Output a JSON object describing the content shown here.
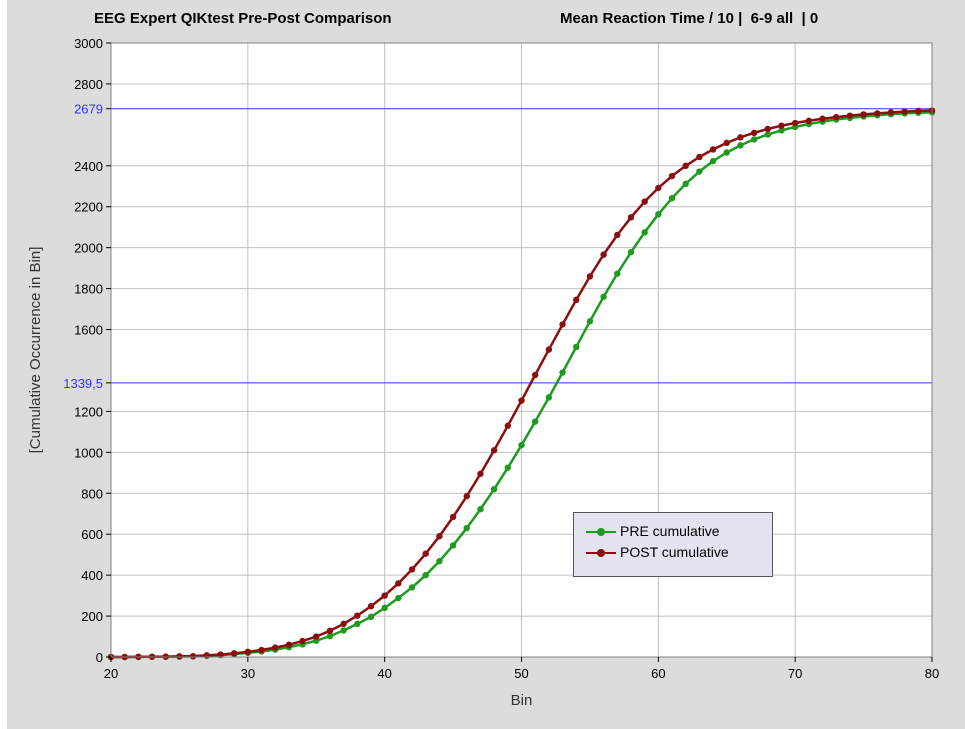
{
  "header": {
    "title_left": "EEG Expert QIKtest Pre-Post Comparison",
    "title_right": "Mean Reaction Time / 10 |  6-9 all  | 0"
  },
  "colors": {
    "background": "#dcdcdc",
    "plot_area": "#ffffff",
    "grid": "#c0c0c0",
    "reference_line": "#3333ff",
    "pre": "#1e9a1e",
    "post": "#8b0f0f"
  },
  "chart_data": {
    "type": "line",
    "xlabel": "Bin",
    "ylabel": "[Cumulative Occurrence in Bin]",
    "xlim": [
      20,
      80
    ],
    "ylim": [
      0,
      3000
    ],
    "x_ticks": [
      "20",
      "30",
      "40",
      "50",
      "60",
      "70",
      "80"
    ],
    "y_ticks": [
      "0",
      "200",
      "400",
      "600",
      "800",
      "1000",
      "1200",
      "1600",
      "1800",
      "2000",
      "2200",
      "2400",
      "2800",
      "3000"
    ],
    "grid": true,
    "legend_position": "lower-right",
    "reference_lines": [
      {
        "value": 2679,
        "label": "2679"
      },
      {
        "value": 1339.5,
        "label": "1339,5"
      }
    ],
    "x": [
      20,
      21,
      22,
      23,
      24,
      25,
      26,
      27,
      28,
      29,
      30,
      31,
      32,
      33,
      34,
      35,
      36,
      37,
      38,
      39,
      40,
      41,
      42,
      43,
      44,
      45,
      46,
      47,
      48,
      49,
      50,
      51,
      52,
      53,
      54,
      55,
      56,
      57,
      58,
      59,
      60,
      61,
      62,
      63,
      64,
      65,
      66,
      67,
      68,
      69,
      70,
      71,
      72,
      73,
      74,
      75,
      76,
      77,
      78,
      79,
      80
    ],
    "series": [
      {
        "name": "PRE cumulative",
        "values": [
          0,
          0,
          0,
          1,
          1,
          2,
          3,
          6,
          9,
          14,
          20,
          27,
          36,
          48,
          62,
          80,
          102,
          130,
          162,
          196,
          240,
          288,
          340,
          400,
          468,
          545,
          630,
          722,
          820,
          925,
          1035,
          1150,
          1268,
          1390,
          1515,
          1640,
          1760,
          1873,
          1978,
          2075,
          2163,
          2242,
          2312,
          2372,
          2423,
          2465,
          2500,
          2529,
          2553,
          2573,
          2590,
          2604,
          2616,
          2626,
          2634,
          2641,
          2647,
          2652,
          2656,
          2659,
          2661
        ]
      },
      {
        "name": "POST cumulative",
        "values": [
          0,
          0,
          1,
          1,
          2,
          3,
          4,
          8,
          12,
          18,
          25,
          34,
          46,
          60,
          78,
          100,
          128,
          162,
          202,
          248,
          300,
          360,
          428,
          505,
          590,
          684,
          786,
          895,
          1010,
          1130,
          1253,
          1378,
          1502,
          1625,
          1745,
          1860,
          1966,
          2062,
          2148,
          2225,
          2292,
          2350,
          2400,
          2443,
          2480,
          2512,
          2539,
          2561,
          2580,
          2596,
          2609,
          2620,
          2630,
          2638,
          2645,
          2651,
          2656,
          2661,
          2665,
          2668,
          2670
        ]
      }
    ]
  }
}
